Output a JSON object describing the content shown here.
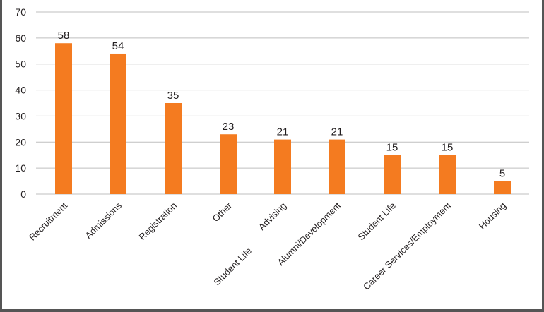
{
  "chart_data": {
    "type": "bar",
    "categories": [
      "Recruitment",
      "Admissions",
      "Registration",
      "Other",
      "Advising",
      "Alumni/Development",
      "Student Life",
      "Career Services/Employment",
      "Housing"
    ],
    "values": [
      58,
      54,
      35,
      23,
      21,
      21,
      15,
      15,
      5
    ],
    "extra_label": "Student Life",
    "ylim": [
      0,
      70
    ],
    "yticks": [
      0,
      10,
      20,
      30,
      40,
      50,
      60,
      70
    ],
    "grid": true,
    "legend": "none",
    "colors": {
      "bar": "#F47B20",
      "grid": "#BFBFBF",
      "text": "#231F20",
      "frame": "#555555"
    }
  }
}
